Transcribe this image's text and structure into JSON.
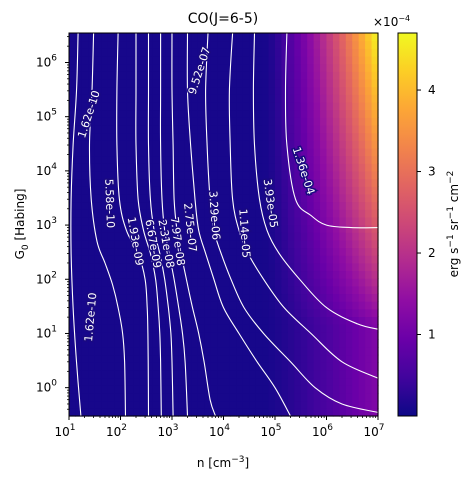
{
  "chart_data": {
    "type": "heatmap",
    "title": "CO(J=6-5)",
    "xlabel": "n [cm$^{-3}$]",
    "ylabel": "G$_0$ [Habing]",
    "x_scale": "log",
    "y_scale": "log",
    "xlim": [
      10,
      10000000
    ],
    "ylim": [
      0.3,
      3500000
    ],
    "x_ticks": [
      {
        "value": 10,
        "base": "10",
        "exp": "1"
      },
      {
        "value": 100,
        "base": "10",
        "exp": "2"
      },
      {
        "value": 1000,
        "base": "10",
        "exp": "3"
      },
      {
        "value": 10000,
        "base": "10",
        "exp": "4"
      },
      {
        "value": 100000,
        "base": "10",
        "exp": "5"
      },
      {
        "value": 1000000,
        "base": "10",
        "exp": "6"
      },
      {
        "value": 10000000,
        "base": "10",
        "exp": "7"
      }
    ],
    "y_ticks": [
      {
        "value": 1,
        "base": "10",
        "exp": "0"
      },
      {
        "value": 10,
        "base": "10",
        "exp": "1"
      },
      {
        "value": 100,
        "base": "10",
        "exp": "2"
      },
      {
        "value": 1000,
        "base": "10",
        "exp": "3"
      },
      {
        "value": 10000,
        "base": "10",
        "exp": "4"
      },
      {
        "value": 100000,
        "base": "10",
        "exp": "5"
      },
      {
        "value": 1000000,
        "base": "10",
        "exp": "6"
      }
    ],
    "colormap": "plasma",
    "colorbar": {
      "label": "erg s$^{-1}$ sr$^{-1}$ cm$^{-2}$",
      "multiplier": "×10",
      "multiplier_exp": "−4",
      "ticks": [
        {
          "value": 1,
          "label": "1"
        },
        {
          "value": 2,
          "label": "2"
        },
        {
          "value": 3,
          "label": "3"
        },
        {
          "value": 4,
          "label": "4"
        }
      ],
      "range": [
        0,
        4.7
      ]
    },
    "contour_color": "#ffffff",
    "contours": [
      {
        "label": "1.62e-10",
        "points": [
          [
            15,
            3500000
          ],
          [
            14,
            300000
          ],
          [
            12,
            30000
          ],
          [
            11,
            3000
          ],
          [
            11,
            300
          ],
          [
            12,
            30
          ],
          [
            14,
            3
          ],
          [
            17,
            0.3
          ]
        ]
      },
      {
        "label": "5.58e-10",
        "points": [
          [
            30,
            3500000
          ],
          [
            28,
            300000
          ],
          [
            25,
            30000
          ],
          [
            27,
            3000
          ],
          [
            35,
            500
          ],
          [
            50,
            200
          ],
          [
            70,
            80
          ],
          [
            90,
            30
          ],
          [
            110,
            10
          ],
          [
            120,
            3
          ],
          [
            125,
            0.3
          ]
        ]
      },
      {
        "label": "1.93e-09",
        "points": [
          [
            90,
            3500000
          ],
          [
            85,
            300000
          ],
          [
            85,
            30000
          ],
          [
            95,
            3000
          ],
          [
            130,
            800
          ],
          [
            220,
            300
          ],
          [
            300,
            100
          ],
          [
            330,
            30
          ],
          [
            340,
            10
          ],
          [
            345,
            3
          ],
          [
            350,
            0.3
          ]
        ]
      },
      {
        "label": "6.67e-09",
        "points": [
          [
            200,
            3500000
          ],
          [
            200,
            300000
          ],
          [
            200,
            30000
          ],
          [
            220,
            3000
          ],
          [
            280,
            800
          ],
          [
            380,
            300
          ],
          [
            480,
            100
          ],
          [
            540,
            30
          ],
          [
            580,
            10
          ],
          [
            600,
            3
          ],
          [
            620,
            0.3
          ]
        ]
      },
      {
        "label": "2.31e-08",
        "points": [
          [
            350,
            3500000
          ],
          [
            350,
            300000
          ],
          [
            350,
            30000
          ],
          [
            380,
            3000
          ],
          [
            450,
            800
          ],
          [
            580,
            300
          ],
          [
            720,
            100
          ],
          [
            850,
            30
          ],
          [
            950,
            10
          ],
          [
            1000,
            3
          ],
          [
            1050,
            0.3
          ]
        ]
      },
      {
        "label": "7.97e-08",
        "points": [
          [
            600,
            3500000
          ],
          [
            600,
            300000
          ],
          [
            600,
            30000
          ],
          [
            640,
            3000
          ],
          [
            720,
            800
          ],
          [
            880,
            300
          ],
          [
            1100,
            100
          ],
          [
            1350,
            30
          ],
          [
            1600,
            10
          ],
          [
            1800,
            3
          ],
          [
            2000,
            0.3
          ]
        ]
      },
      {
        "label": "2.75e-07",
        "points": [
          [
            1000,
            3500000
          ],
          [
            1000,
            300000
          ],
          [
            1050,
            30000
          ],
          [
            1100,
            3000
          ],
          [
            1250,
            800
          ],
          [
            1500,
            300
          ],
          [
            1900,
            100
          ],
          [
            2500,
            30
          ],
          [
            3300,
            10
          ],
          [
            4200,
            3
          ],
          [
            5500,
            0.6
          ],
          [
            7000,
            0.3
          ]
        ]
      },
      {
        "label": "9.52e-07",
        "points": [
          [
            2000,
            3500000
          ],
          [
            2000,
            300000
          ],
          [
            2300,
            30000
          ],
          [
            2800,
            3000
          ],
          [
            3300,
            800
          ],
          [
            4500,
            300
          ],
          [
            6500,
            100
          ],
          [
            10000,
            30
          ],
          [
            20000,
            10
          ],
          [
            45000,
            3
          ],
          [
            100000,
            1
          ],
          [
            200000,
            0.3
          ]
        ]
      },
      {
        "label": "3.29e-06",
        "points": [
          [
            5000,
            3500000
          ],
          [
            4500,
            300000
          ],
          [
            4800,
            30000
          ],
          [
            5500,
            3000
          ],
          [
            6500,
            800
          ],
          [
            9000,
            300
          ],
          [
            14000,
            100
          ],
          [
            25000,
            30
          ],
          [
            60000,
            10
          ],
          [
            200000,
            3
          ],
          [
            600000,
            1
          ],
          [
            2000000,
            0.5
          ],
          [
            10000000,
            0.35
          ]
        ]
      },
      {
        "label": "1.14e-05",
        "points": [
          [
            15000,
            3500000
          ],
          [
            13000,
            300000
          ],
          [
            13500,
            30000
          ],
          [
            15000,
            3000
          ],
          [
            20000,
            800
          ],
          [
            30000,
            300
          ],
          [
            60000,
            100
          ],
          [
            150000,
            30
          ],
          [
            500000,
            10
          ],
          [
            2000000,
            3
          ],
          [
            10000000,
            1.5
          ]
        ]
      },
      {
        "label": "3.93e-05",
        "points": [
          [
            40000,
            3500000
          ],
          [
            38000,
            300000
          ],
          [
            40000,
            30000
          ],
          [
            50000,
            3000
          ],
          [
            70000,
            800
          ],
          [
            120000,
            300
          ],
          [
            300000,
            100
          ],
          [
            1000000,
            30
          ],
          [
            4000000,
            15
          ],
          [
            10000000,
            12
          ]
        ]
      },
      {
        "label": "1.36e-04",
        "points": [
          [
            170000,
            3500000
          ],
          [
            160000,
            300000
          ],
          [
            170000,
            30000
          ],
          [
            250000,
            3000
          ],
          [
            500000,
            1500
          ],
          [
            1000000,
            1000
          ],
          [
            3000000,
            900
          ],
          [
            10000000,
            900
          ]
        ]
      }
    ],
    "contour_labels": [
      {
        "text": "1.62e-10",
        "at": [
          25,
          110000
        ],
        "angle": -72
      },
      {
        "text": "1.62e-10",
        "at": [
          27,
          20
        ],
        "angle": -85
      },
      {
        "text": "5.58e-10",
        "at": [
          60,
          2500
        ],
        "angle": 88
      },
      {
        "text": "1.93e-09",
        "at": [
          190,
          500
        ],
        "angle": 80
      },
      {
        "text": "6.67e-09",
        "at": [
          420,
          450
        ],
        "angle": 80
      },
      {
        "text": "2.31e-08",
        "at": [
          750,
          450
        ],
        "angle": 80
      },
      {
        "text": "7.97e-08",
        "at": [
          1250,
          500
        ],
        "angle": 82
      },
      {
        "text": "2.75e-07",
        "at": [
          2200,
          900
        ],
        "angle": 84
      },
      {
        "text": "3.29e-06",
        "at": [
          6500,
          1500
        ],
        "angle": 86
      },
      {
        "text": "1.14e-05",
        "at": [
          25000,
          700
        ],
        "angle": 86
      },
      {
        "text": "3.93e-05",
        "at": [
          80000,
          2500
        ],
        "angle": 82
      },
      {
        "text": "9.52e-07",
        "at": [
          3500,
          700000
        ],
        "angle": -72
      },
      {
        "text": "1.36e-04",
        "at": [
          350000,
          10000
        ],
        "angle": 72
      }
    ]
  }
}
